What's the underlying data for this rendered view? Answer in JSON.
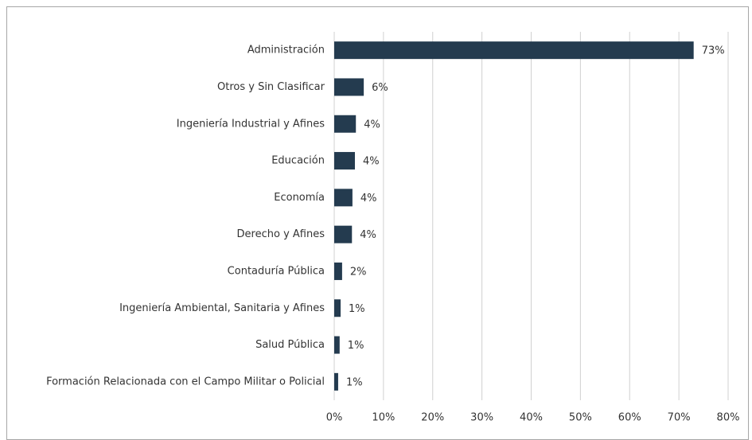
{
  "chart_data": {
    "type": "bar",
    "orientation": "horizontal",
    "categories": [
      "Administración",
      "Otros y Sin Clasificar",
      "Ingeniería Industrial y Afines",
      "Educación",
      "Economía",
      "Derecho y Afines",
      "Contaduría Pública",
      "Ingeniería Ambiental, Sanitaria y Afines",
      "Salud Pública",
      "Formación Relacionada con el Campo Militar o Policial"
    ],
    "values": [
      73,
      6,
      4.4,
      4.2,
      3.7,
      3.6,
      1.6,
      1.3,
      1.1,
      0.8
    ],
    "value_labels": [
      "73%",
      "6%",
      "4%",
      "4%",
      "4%",
      "4%",
      "2%",
      "1%",
      "1%",
      "1%"
    ],
    "color": "#243b4f",
    "xlim": [
      0,
      80
    ],
    "xticks": [
      {
        "value": 0,
        "label": "0%"
      },
      {
        "value": 10,
        "label": "10%"
      },
      {
        "value": 20,
        "label": "20%"
      },
      {
        "value": 30,
        "label": "30%"
      },
      {
        "value": 40,
        "label": "40%"
      },
      {
        "value": 50,
        "label": "50%"
      },
      {
        "value": 60,
        "label": "60%"
      },
      {
        "value": 70,
        "label": "70%"
      },
      {
        "value": 80,
        "label": "80%"
      }
    ],
    "grid": true
  }
}
